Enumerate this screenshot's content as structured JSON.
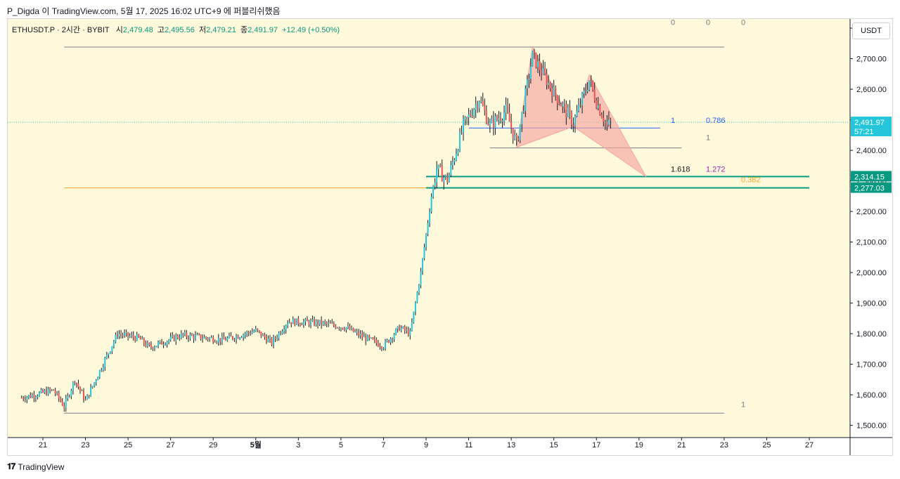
{
  "header": {
    "attribution": "P_Digda 이 TradingView.com, 5월 17, 2025 16:02 UTC+9 에 퍼블리쉬했음"
  },
  "legend": {
    "symbol": "ETHUSDT.P · 2시간 · BYBIT",
    "o_label": "시",
    "o": "2,479.48",
    "h_label": "고",
    "h": "2,495.56",
    "l_label": "저",
    "l": "2,479.21",
    "c_label": "종",
    "c": "2,491.97",
    "change": "+12.49 (+0.50%)"
  },
  "currency": "USDT",
  "footer": {
    "brand": "TradingView"
  },
  "colors": {
    "background": "#fff9db",
    "up": "#26c6da",
    "down": "#ef5350",
    "pattern": "#f4a6a0",
    "fib_line": "#089981",
    "level_orange": "#f5a623",
    "level_blue": "#2962ff"
  },
  "chart_data": {
    "type": "candlestick",
    "title": "",
    "y_axis": {
      "ticks": [
        "2,800.00",
        "2,700.00",
        "2,600.00",
        "2,500.00",
        "2,400.00",
        "2,300.00",
        "2,200.00",
        "2,100.00",
        "2,000.00",
        "1,900.00",
        "1,800.00",
        "1,700.00",
        "1,600.00",
        "1,500.00"
      ],
      "range": [
        1460,
        2830
      ]
    },
    "x_axis": {
      "ticks": [
        "21",
        "23",
        "25",
        "27",
        "29",
        "5월",
        "3",
        "5",
        "7",
        "9",
        "11",
        "13",
        "15",
        "17",
        "19",
        "21",
        "23",
        "25",
        "27"
      ],
      "start": "2025-04-21",
      "end": "2025-05-27"
    },
    "last_price": {
      "value": "2,491.97",
      "countdown": "57:21"
    },
    "price_labels": [
      {
        "value": "2,314.15"
      },
      {
        "value": "2,277.03"
      }
    ],
    "fib_labels": [
      {
        "text": "0",
        "price": 2810
      },
      {
        "text": "0",
        "price": 2810
      },
      {
        "text": "0",
        "price": 2810
      },
      {
        "text": "1",
        "price": 2490
      },
      {
        "text": "0.786",
        "price": 2490
      },
      {
        "text": "1",
        "price": 2433
      },
      {
        "text": "1.618",
        "price": 2330
      },
      {
        "text": "1.272",
        "price": 2330
      },
      {
        "text": "0.382",
        "price": 2295
      },
      {
        "text": "1",
        "price": 1560
      }
    ],
    "levels": [
      {
        "price": 2738,
        "from": "2025-04-22",
        "to": "2025-05-23"
      },
      {
        "price": 1540,
        "from": "2025-04-22",
        "to": "2025-05-23"
      },
      {
        "price": 2277.03,
        "from": "2025-04-22",
        "to": "2025-05-23"
      },
      {
        "price": 2314.15,
        "from": "2025-05-09",
        "to": "2025-05-27"
      },
      {
        "price": 2277.03,
        "from": "2025-05-09",
        "to": "2025-05-27"
      },
      {
        "price": 2473,
        "from": "2025-05-11",
        "to": "2025-05-20"
      },
      {
        "price": 2408,
        "from": "2025-05-12",
        "to": "2025-05-21"
      }
    ],
    "harmonic_pattern": {
      "points": [
        {
          "date": "2025-05-13 06:00",
          "price": 2410
        },
        {
          "date": "2025-05-14 00:00",
          "price": 2738
        },
        {
          "date": "2025-05-15 22:00",
          "price": 2478
        },
        {
          "date": "2025-05-16 16:00",
          "price": 2648
        },
        {
          "date": "2025-05-19 08:00",
          "price": 2314
        }
      ]
    },
    "trend_anchors": [
      {
        "date": "2025-04-20 00:00",
        "price": 1590
      },
      {
        "date": "2025-04-21 12:00",
        "price": 1615
      },
      {
        "date": "2025-04-22 00:00",
        "price": 1562
      },
      {
        "date": "2025-04-22 12:00",
        "price": 1650
      },
      {
        "date": "2025-04-23 00:00",
        "price": 1580
      },
      {
        "date": "2025-04-23 18:00",
        "price": 1690
      },
      {
        "date": "2025-04-24 12:00",
        "price": 1800
      },
      {
        "date": "2025-04-25 12:00",
        "price": 1785
      },
      {
        "date": "2025-04-26 00:00",
        "price": 1755
      },
      {
        "date": "2025-04-27 12:00",
        "price": 1795
      },
      {
        "date": "2025-04-29 12:00",
        "price": 1780
      },
      {
        "date": "2025-05-01 00:00",
        "price": 1810
      },
      {
        "date": "2025-05-01 18:00",
        "price": 1770
      },
      {
        "date": "2025-05-02 12:00",
        "price": 1840
      },
      {
        "date": "2025-05-04 00:00",
        "price": 1835
      },
      {
        "date": "2025-05-05 06:00",
        "price": 1820
      },
      {
        "date": "2025-05-06 00:00",
        "price": 1790
      },
      {
        "date": "2025-05-07 00:00",
        "price": 1760
      },
      {
        "date": "2025-05-07 18:00",
        "price": 1820
      },
      {
        "date": "2025-05-08 06:00",
        "price": 1800
      },
      {
        "date": "2025-05-08 18:00",
        "price": 2000
      },
      {
        "date": "2025-05-09 06:00",
        "price": 2250
      },
      {
        "date": "2025-05-09 12:00",
        "price": 2340
      },
      {
        "date": "2025-05-10 00:00",
        "price": 2300
      },
      {
        "date": "2025-05-10 18:00",
        "price": 2480
      },
      {
        "date": "2025-05-11 12:00",
        "price": 2570
      },
      {
        "date": "2025-05-12 00:00",
        "price": 2480
      },
      {
        "date": "2025-05-12 18:00",
        "price": 2530
      },
      {
        "date": "2025-05-13 06:00",
        "price": 2420
      },
      {
        "date": "2025-05-14 00:00",
        "price": 2710
      },
      {
        "date": "2025-05-15 00:00",
        "price": 2590
      },
      {
        "date": "2025-05-15 22:00",
        "price": 2490
      },
      {
        "date": "2025-05-16 16:00",
        "price": 2630
      },
      {
        "date": "2025-05-17 00:00",
        "price": 2560
      },
      {
        "date": "2025-05-17 12:00",
        "price": 2480
      },
      {
        "date": "2025-05-17 16:00",
        "price": 2492
      }
    ]
  }
}
